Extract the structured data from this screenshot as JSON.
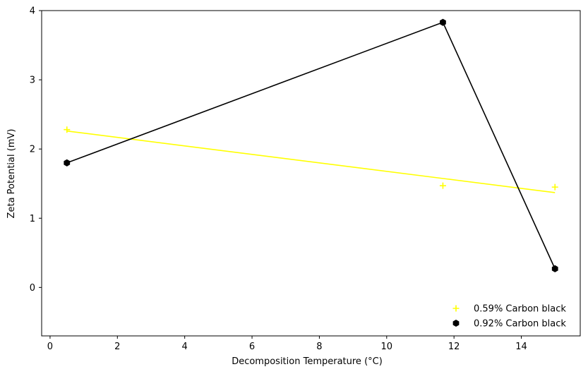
{
  "chart_data": {
    "type": "scatter",
    "title": "",
    "xlabel": "Decomposition Temperature (°C)",
    "ylabel": "Zeta Potential (mV)",
    "xlim": [
      -0.25,
      15.75
    ],
    "ylim": [
      -0.7,
      4.0
    ],
    "xticks": [
      0,
      2,
      4,
      6,
      8,
      10,
      12,
      14
    ],
    "yticks": [
      0,
      1,
      2,
      3,
      4
    ],
    "grid": false,
    "legend_position": "lower-right",
    "series": [
      {
        "name": "0.59% Carbon black",
        "color": "#ffff00",
        "marker": "plus",
        "points": [
          {
            "x": 0.5,
            "y": 2.28
          },
          {
            "x": 11.67,
            "y": 1.47
          },
          {
            "x": 15.0,
            "y": 1.45
          }
        ],
        "line": {
          "style": "linear-fit",
          "points": [
            {
              "x": 0.5,
              "y": 2.26
            },
            {
              "x": 15.0,
              "y": 1.37
            }
          ]
        }
      },
      {
        "name": "0.92% Carbon black",
        "color": "#000000",
        "marker": "hexagon",
        "points": [
          {
            "x": 0.5,
            "y": 1.8
          },
          {
            "x": 11.67,
            "y": 3.83
          },
          {
            "x": 15.0,
            "y": 0.27
          }
        ],
        "line": {
          "style": "connect"
        }
      }
    ]
  }
}
